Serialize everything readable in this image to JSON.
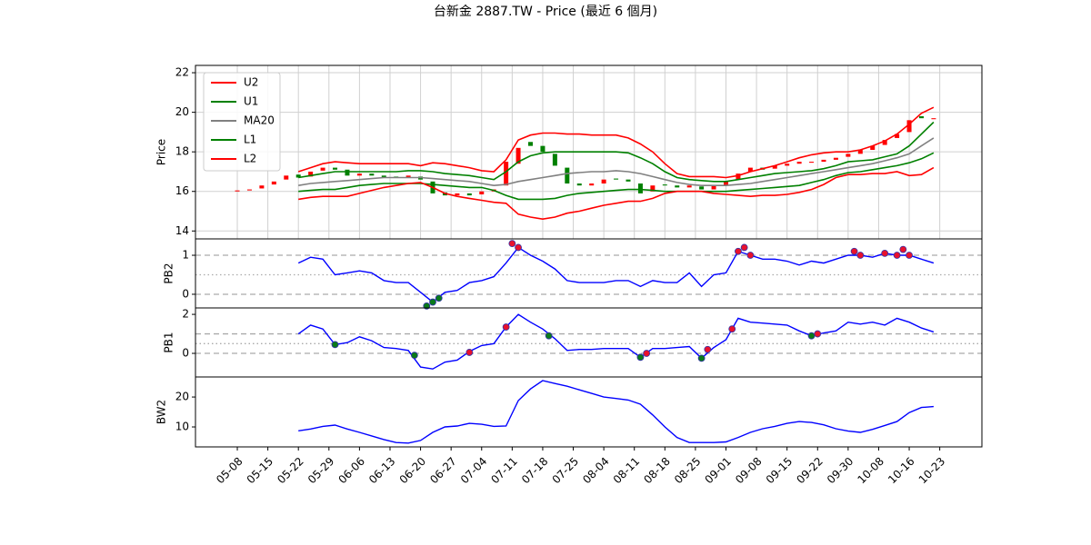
{
  "chart_data": [
    {
      "type": "candlestick",
      "title": "台新金 2887.TW - Price (最近 6 個月)",
      "ylabel": "Price",
      "x": [
        0,
        2,
        4,
        6,
        8,
        10,
        12,
        14,
        16,
        18,
        20,
        22,
        24,
        26,
        28,
        30,
        32,
        34,
        36,
        38,
        40,
        42,
        44,
        46,
        48,
        50,
        52,
        54,
        56,
        58,
        60,
        62,
        64,
        66,
        68,
        70,
        72,
        74,
        76,
        78,
        80,
        82,
        84,
        86,
        88,
        90,
        92,
        94,
        96,
        98,
        100,
        102,
        104,
        106,
        108,
        110,
        112,
        114
      ],
      "open": [
        16.0,
        16.05,
        16.15,
        16.35,
        16.6,
        16.85,
        16.75,
        17.05,
        17.2,
        17.1,
        16.8,
        16.9,
        16.8,
        16.75,
        16.7,
        16.75,
        16.5,
        15.95,
        15.8,
        15.9,
        15.85,
        16.0,
        16.3,
        17.4,
        18.5,
        18.3,
        17.9,
        17.2,
        16.4,
        16.3,
        16.4,
        16.65,
        16.6,
        16.4,
        16.0,
        16.35,
        16.3,
        16.2,
        16.25,
        16.1,
        16.3,
        16.6,
        17.0,
        17.2,
        17.15,
        17.3,
        17.4,
        17.45,
        17.5,
        17.6,
        17.75,
        17.9,
        18.1,
        18.35,
        18.7,
        19.0,
        19.8,
        19.65
      ],
      "close": [
        16.05,
        16.1,
        16.3,
        16.5,
        16.8,
        16.7,
        17.0,
        17.2,
        17.1,
        16.8,
        16.9,
        16.8,
        16.7,
        16.7,
        16.8,
        16.6,
        15.9,
        15.8,
        15.9,
        15.8,
        16.0,
        16.1,
        17.5,
        18.2,
        18.3,
        18.0,
        17.3,
        16.4,
        16.3,
        16.4,
        16.6,
        16.6,
        16.5,
        15.9,
        16.3,
        16.3,
        16.2,
        16.3,
        16.1,
        16.3,
        16.5,
        16.9,
        17.2,
        17.1,
        17.3,
        17.4,
        17.5,
        17.5,
        17.6,
        17.7,
        17.9,
        18.1,
        18.3,
        18.6,
        18.9,
        19.6,
        19.7,
        19.7
      ],
      "up_color": "#ff0000",
      "down_color": "#008000",
      "series": [
        {
          "name": "U2",
          "color": "#ff0000",
          "values": [
            null,
            null,
            null,
            null,
            null,
            17.0,
            17.2,
            17.4,
            17.5,
            17.45,
            17.4,
            17.4,
            17.4,
            17.4,
            17.4,
            17.3,
            17.45,
            17.4,
            17.3,
            17.2,
            17.05,
            17.0,
            17.6,
            18.6,
            18.85,
            18.95,
            18.95,
            18.9,
            18.9,
            18.85,
            18.85,
            18.85,
            18.7,
            18.4,
            18.0,
            17.4,
            16.9,
            16.75,
            16.75,
            16.75,
            16.7,
            16.8,
            17.0,
            17.15,
            17.3,
            17.5,
            17.7,
            17.85,
            17.95,
            18.0,
            18.0,
            18.1,
            18.3,
            18.55,
            18.9,
            19.4,
            19.95,
            20.25
          ]
        },
        {
          "name": "U1",
          "color": "#008000",
          "values": [
            null,
            null,
            null,
            null,
            null,
            16.7,
            16.8,
            16.9,
            17.0,
            17.0,
            17.0,
            17.0,
            17.0,
            17.0,
            17.05,
            17.05,
            17.0,
            16.9,
            16.85,
            16.8,
            16.7,
            16.6,
            17.0,
            17.5,
            17.8,
            17.95,
            18.0,
            18.0,
            18.0,
            18.0,
            18.0,
            18.0,
            17.95,
            17.7,
            17.4,
            17.0,
            16.7,
            16.6,
            16.55,
            16.5,
            16.5,
            16.6,
            16.7,
            16.8,
            16.9,
            16.95,
            17.0,
            17.05,
            17.15,
            17.3,
            17.5,
            17.55,
            17.6,
            17.75,
            17.9,
            18.3,
            18.9,
            19.5
          ]
        },
        {
          "name": "MA20",
          "color": "#808080",
          "values": [
            null,
            null,
            null,
            null,
            null,
            16.3,
            16.4,
            16.45,
            16.5,
            16.55,
            16.6,
            16.65,
            16.7,
            16.7,
            16.7,
            16.7,
            16.65,
            16.6,
            16.55,
            16.5,
            16.4,
            16.3,
            16.35,
            16.5,
            16.6,
            16.7,
            16.8,
            16.9,
            16.95,
            17.0,
            17.0,
            17.05,
            17.0,
            16.9,
            16.75,
            16.6,
            16.45,
            16.35,
            16.3,
            16.3,
            16.3,
            16.35,
            16.4,
            16.5,
            16.6,
            16.7,
            16.8,
            16.9,
            17.0,
            17.1,
            17.2,
            17.3,
            17.4,
            17.55,
            17.7,
            17.9,
            18.3,
            18.7
          ]
        },
        {
          "name": "L1",
          "color": "#008000",
          "values": [
            null,
            null,
            null,
            null,
            null,
            16.0,
            16.05,
            16.1,
            16.1,
            16.2,
            16.3,
            16.35,
            16.4,
            16.4,
            16.4,
            16.4,
            16.35,
            16.3,
            16.25,
            16.2,
            16.2,
            16.05,
            15.8,
            15.6,
            15.6,
            15.6,
            15.65,
            15.8,
            15.9,
            15.95,
            16.0,
            16.05,
            16.1,
            16.1,
            16.05,
            16.0,
            16.0,
            16.0,
            16.0,
            16.0,
            16.0,
            16.05,
            16.1,
            16.15,
            16.2,
            16.25,
            16.3,
            16.45,
            16.6,
            16.8,
            16.95,
            17.0,
            17.1,
            17.2,
            17.3,
            17.45,
            17.65,
            17.95
          ]
        },
        {
          "name": "L2",
          "color": "#ff0000",
          "values": [
            null,
            null,
            null,
            null,
            null,
            15.6,
            15.7,
            15.75,
            15.75,
            15.75,
            15.9,
            16.05,
            16.2,
            16.3,
            16.4,
            16.45,
            16.2,
            15.9,
            15.75,
            15.65,
            15.55,
            15.45,
            15.4,
            14.85,
            14.7,
            14.6,
            14.7,
            14.9,
            15.0,
            15.15,
            15.3,
            15.4,
            15.5,
            15.5,
            15.65,
            15.9,
            16.0,
            16.0,
            16.0,
            15.9,
            15.85,
            15.8,
            15.75,
            15.8,
            15.8,
            15.85,
            15.95,
            16.1,
            16.35,
            16.7,
            16.85,
            16.85,
            16.9,
            16.9,
            17.0,
            16.8,
            16.85,
            17.2
          ]
        }
      ],
      "xlim": [
        -6.85,
        121.9
      ],
      "ylim": [
        13.6,
        22.37
      ],
      "yticks": [
        14,
        16,
        18,
        20,
        22
      ],
      "grid": true,
      "legend": "upper left"
    },
    {
      "type": "line",
      "ylabel": "PB2",
      "x": [
        0,
        2,
        4,
        6,
        8,
        10,
        12,
        14,
        16,
        18,
        20,
        22,
        24,
        26,
        28,
        30,
        32,
        34,
        36,
        38,
        40,
        42,
        44,
        46,
        48,
        50,
        52,
        54,
        56,
        58,
        60,
        62,
        64,
        66,
        68,
        70,
        72,
        74,
        76,
        78,
        80,
        82,
        84,
        86,
        88,
        90,
        92,
        94,
        96,
        98,
        100,
        102,
        104,
        106,
        108,
        110,
        112,
        114
      ],
      "series": [
        {
          "color": "#0000ff",
          "values": [
            null,
            null,
            null,
            null,
            null,
            0.8,
            0.95,
            0.9,
            0.5,
            0.55,
            0.6,
            0.55,
            0.35,
            0.3,
            0.3,
            0.05,
            -0.2,
            0.05,
            0.1,
            0.3,
            0.35,
            0.45,
            0.8,
            1.2,
            1.0,
            0.85,
            0.65,
            0.35,
            0.3,
            0.3,
            0.3,
            0.35,
            0.35,
            0.2,
            0.35,
            0.3,
            0.3,
            0.55,
            0.2,
            0.5,
            0.55,
            1.1,
            1.0,
            0.9,
            0.9,
            0.85,
            0.75,
            0.85,
            0.8,
            0.9,
            1.0,
            1.0,
            0.95,
            1.05,
            1.0,
            1.0,
            0.9,
            0.8
          ]
        }
      ],
      "signals": [
        {
          "color": "#e8112d",
          "x": [
            45,
            46,
            82,
            83,
            84,
            101,
            102,
            106,
            108,
            109,
            110
          ],
          "values": [
            1.3,
            1.2,
            1.1,
            1.2,
            1.0,
            1.1,
            1.0,
            1.05,
            1.0,
            1.15,
            1.0
          ]
        },
        {
          "color": "#0a7a1a",
          "x": [
            31,
            32,
            33
          ],
          "values": [
            -0.3,
            -0.2,
            -0.1
          ]
        }
      ],
      "hlines": [
        {
          "value": 0,
          "style": "dashed"
        },
        {
          "value": 0.5,
          "style": "dotted"
        },
        {
          "value": 1,
          "style": "dashed"
        }
      ],
      "xlim": [
        -6.85,
        121.9
      ],
      "ylim": [
        -0.35,
        1.42
      ],
      "yticks": [
        0,
        1
      ]
    },
    {
      "type": "line",
      "ylabel": "PB1",
      "x": [
        0,
        2,
        4,
        6,
        8,
        10,
        12,
        14,
        16,
        18,
        20,
        22,
        24,
        26,
        28,
        30,
        32,
        34,
        36,
        38,
        40,
        42,
        44,
        46,
        48,
        50,
        52,
        54,
        56,
        58,
        60,
        62,
        64,
        66,
        68,
        70,
        72,
        74,
        76,
        78,
        80,
        82,
        84,
        86,
        88,
        90,
        92,
        94,
        96,
        98,
        100,
        102,
        104,
        106,
        108,
        110,
        112,
        114
      ],
      "series": [
        {
          "color": "#0000ff",
          "values": [
            null,
            null,
            null,
            null,
            null,
            1.0,
            1.45,
            1.25,
            0.45,
            0.55,
            0.85,
            0.65,
            0.3,
            0.25,
            0.15,
            -0.7,
            -0.8,
            -0.45,
            -0.35,
            0.1,
            0.4,
            0.5,
            1.35,
            2.0,
            1.6,
            1.25,
            0.75,
            0.15,
            0.2,
            0.2,
            0.25,
            0.25,
            0.25,
            -0.2,
            0.25,
            0.25,
            0.3,
            0.35,
            -0.25,
            0.3,
            0.7,
            1.8,
            1.6,
            1.55,
            1.5,
            1.45,
            1.15,
            0.9,
            1.05,
            1.15,
            1.6,
            1.5,
            1.6,
            1.45,
            1.8,
            1.6,
            1.3,
            1.1
          ]
        }
      ],
      "signals": [
        {
          "color": "#e8112d",
          "x": [
            38,
            44,
            67,
            77,
            81,
            95
          ],
          "values": [
            0.05,
            1.35,
            0,
            0.2,
            1.25,
            1.0
          ]
        },
        {
          "color": "#0a7a1a",
          "x": [
            16,
            29,
            51,
            66,
            76,
            94
          ],
          "values": [
            0.45,
            -0.1,
            0.9,
            -0.2,
            -0.25,
            0.9
          ]
        }
      ],
      "hlines": [
        {
          "value": 0,
          "style": "dashed"
        },
        {
          "value": 0.5,
          "style": "dotted"
        },
        {
          "value": 1,
          "style": "dashed"
        }
      ],
      "xlim": [
        -6.85,
        121.9
      ],
      "ylim": [
        -1.21,
        2.33
      ],
      "yticks": [
        0,
        2
      ]
    },
    {
      "type": "line",
      "ylabel": "BW2",
      "x": [
        0,
        2,
        4,
        6,
        8,
        10,
        12,
        14,
        16,
        18,
        20,
        22,
        24,
        26,
        28,
        30,
        32,
        34,
        36,
        38,
        40,
        42,
        44,
        46,
        48,
        50,
        52,
        54,
        56,
        58,
        60,
        62,
        64,
        66,
        68,
        70,
        72,
        74,
        76,
        78,
        80,
        82,
        84,
        86,
        88,
        90,
        92,
        94,
        96,
        98,
        100,
        102,
        104,
        106,
        108,
        110,
        112,
        114
      ],
      "series": [
        {
          "color": "#0000ff",
          "values": [
            null,
            null,
            null,
            null,
            null,
            8.7,
            9.3,
            10.2,
            10.6,
            9.3,
            8.2,
            7.0,
            5.8,
            4.8,
            4.6,
            5.5,
            8.2,
            10.0,
            10.3,
            11.2,
            10.9,
            10.2,
            10.3,
            18.8,
            22.7,
            25.5,
            24.5,
            23.6,
            22.4,
            21.2,
            20.0,
            19.5,
            19.0,
            17.6,
            14.0,
            10.0,
            6.5,
            4.8,
            4.8,
            4.8,
            5.0,
            6.5,
            8.2,
            9.4,
            10.2,
            11.2,
            11.8,
            11.5,
            10.7,
            9.4,
            8.6,
            8.2,
            9.2,
            10.5,
            11.8,
            14.8,
            16.5,
            16.8
          ]
        }
      ],
      "xlim": [
        -6.85,
        121.9
      ],
      "ylim": [
        3.33,
        26.7
      ],
      "yticks": [
        10,
        20
      ],
      "xticks": [
        {
          "value": 0,
          "label": "05-08"
        },
        {
          "value": 5,
          "label": "05-15"
        },
        {
          "value": 10,
          "label": "05-22"
        },
        {
          "value": 15,
          "label": "05-29"
        },
        {
          "value": 20,
          "label": "06-06"
        },
        {
          "value": 25,
          "label": "06-13"
        },
        {
          "value": 30,
          "label": "06-20"
        },
        {
          "value": 35,
          "label": "06-27"
        },
        {
          "value": 40,
          "label": "07-04"
        },
        {
          "value": 45,
          "label": "07-11"
        },
        {
          "value": 50,
          "label": "07-18"
        },
        {
          "value": 55,
          "label": "07-25"
        },
        {
          "value": 60,
          "label": "08-04"
        },
        {
          "value": 65,
          "label": "08-11"
        },
        {
          "value": 70,
          "label": "08-18"
        },
        {
          "value": 75,
          "label": "08-25"
        },
        {
          "value": 80,
          "label": "09-01"
        },
        {
          "value": 85,
          "label": "09-08"
        },
        {
          "value": 90,
          "label": "09-15"
        },
        {
          "value": 95,
          "label": "09-22"
        },
        {
          "value": 100,
          "label": "09-30"
        },
        {
          "value": 105,
          "label": "10-08"
        },
        {
          "value": 110,
          "label": "10-16"
        },
        {
          "value": 115,
          "label": "10-23"
        }
      ]
    }
  ]
}
